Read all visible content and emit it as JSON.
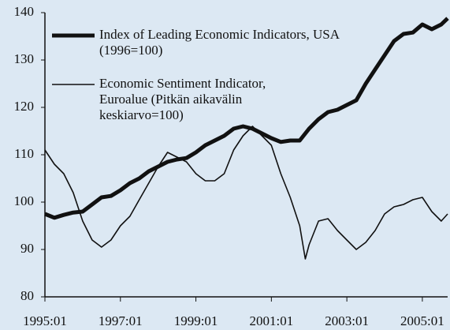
{
  "chart_data": {
    "type": "line",
    "xlim": [
      1995,
      2005.67
    ],
    "ylim": [
      80,
      140
    ],
    "yticks": [
      80,
      90,
      100,
      110,
      120,
      130,
      140
    ],
    "xticks": [
      {
        "value": 1995,
        "label": "1995:01"
      },
      {
        "value": 1997,
        "label": "1997:01"
      },
      {
        "value": 1999,
        "label": "1999:01"
      },
      {
        "value": 2001,
        "label": "2001:01"
      },
      {
        "value": 2003,
        "label": "2003:01"
      },
      {
        "value": 2005,
        "label": "2005:01"
      }
    ],
    "series": [
      {
        "name": "Index of Leading Economic Indicators, USA (1996=100)",
        "color": "#111111",
        "width": 5,
        "x": [
          1995,
          1995.25,
          1995.5,
          1995.75,
          1996,
          1996.25,
          1996.5,
          1996.75,
          1997,
          1997.25,
          1997.5,
          1997.75,
          1998,
          1998.25,
          1998.5,
          1998.75,
          1999,
          1999.25,
          1999.5,
          1999.75,
          2000,
          2000.25,
          2000.5,
          2000.75,
          2001,
          2001.25,
          2001.5,
          2001.75,
          2002,
          2002.25,
          2002.5,
          2002.75,
          2003,
          2003.25,
          2003.5,
          2003.75,
          2004,
          2004.25,
          2004.5,
          2004.75,
          2005,
          2005.25,
          2005.5,
          2005.67
        ],
        "values": [
          97.5,
          96.7,
          97.3,
          97.8,
          98,
          99.5,
          101,
          101.3,
          102.5,
          104,
          105,
          106.5,
          107.5,
          108.5,
          109,
          109.3,
          110.5,
          112,
          113,
          114,
          115.5,
          116,
          115.5,
          114.5,
          113.5,
          112.7,
          113,
          113,
          115.5,
          117.5,
          119,
          119.5,
          120.5,
          121.5,
          125,
          128,
          131,
          134,
          135.5,
          135.8,
          137.5,
          136.5,
          137.5,
          138.8
        ]
      },
      {
        "name": "Economic Sentiment Indicator, Euroalue (Pitkän aikavälin keskiarvo=100)",
        "color": "#111111",
        "width": 1.6,
        "x": [
          1995,
          1995.25,
          1995.5,
          1995.75,
          1996,
          1996.25,
          1996.5,
          1996.75,
          1997,
          1997.25,
          1997.5,
          1997.75,
          1998,
          1998.25,
          1998.5,
          1998.75,
          1999,
          1999.25,
          1999.5,
          1999.75,
          2000,
          2000.25,
          2000.5,
          2000.75,
          2001,
          2001.25,
          2001.5,
          2001.75,
          2001.9,
          2002,
          2002.25,
          2002.5,
          2002.75,
          2003,
          2003.25,
          2003.5,
          2003.75,
          2004,
          2004.25,
          2004.5,
          2004.75,
          2005,
          2005.25,
          2005.5,
          2005.67
        ],
        "values": [
          111,
          108,
          106,
          102,
          96,
          92,
          90.5,
          92,
          95,
          97,
          100.5,
          104,
          107.5,
          110.5,
          109.5,
          108.5,
          106,
          104.5,
          104.5,
          106,
          111,
          114,
          116,
          114,
          112,
          106,
          101,
          95,
          88,
          91,
          96,
          96.5,
          94,
          92,
          90,
          91.5,
          94,
          97.5,
          99,
          99.5,
          100.5,
          101,
          98,
          96,
          97.5
        ]
      }
    ]
  }
}
